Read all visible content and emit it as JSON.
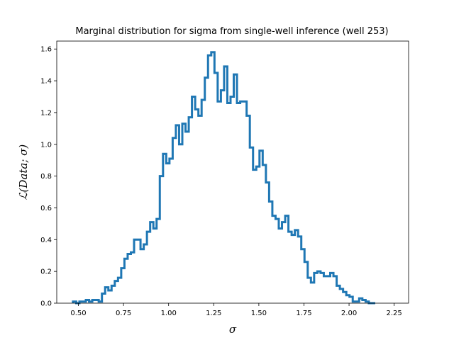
{
  "chart_data": {
    "type": "histogram-step",
    "title": "Marginal distribution for sigma from single-well inference (well 253)",
    "xlabel": "σ",
    "ylabel": "ℒ(Data; σ)",
    "xlim": [
      0.38,
      2.33
    ],
    "ylim": [
      0.0,
      1.65
    ],
    "xticks": [
      0.5,
      0.75,
      1.0,
      1.25,
      1.5,
      1.75,
      2.0,
      2.25
    ],
    "xtick_labels": [
      "0.50",
      "0.75",
      "1.00",
      "1.25",
      "1.50",
      "1.75",
      "2.00",
      "2.25"
    ],
    "yticks": [
      0.0,
      0.2,
      0.4,
      0.6,
      0.8,
      1.0,
      1.2,
      1.4,
      1.6
    ],
    "ytick_labels": [
      "0.0",
      "0.2",
      "0.4",
      "0.6",
      "0.8",
      "1.0",
      "1.2",
      "1.4",
      "1.6"
    ],
    "grid": false,
    "line_color": "#1f77b4",
    "bin_start": 0.47,
    "bin_width": 0.01782,
    "values": [
      0.01,
      0.0,
      0.01,
      0.01,
      0.02,
      0.01,
      0.02,
      0.02,
      0.01,
      0.06,
      0.1,
      0.08,
      0.11,
      0.14,
      0.16,
      0.22,
      0.28,
      0.31,
      0.32,
      0.4,
      0.4,
      0.34,
      0.37,
      0.45,
      0.51,
      0.47,
      0.53,
      0.8,
      0.94,
      0.88,
      0.91,
      1.04,
      1.12,
      1.0,
      1.13,
      1.08,
      1.17,
      1.3,
      1.22,
      1.18,
      1.28,
      1.42,
      1.56,
      1.58,
      1.45,
      1.27,
      1.34,
      1.49,
      1.26,
      1.3,
      1.44,
      1.26,
      1.27,
      1.27,
      1.18,
      0.98,
      0.84,
      0.86,
      0.96,
      0.87,
      0.76,
      0.64,
      0.55,
      0.53,
      0.47,
      0.51,
      0.55,
      0.45,
      0.43,
      0.46,
      0.42,
      0.34,
      0.26,
      0.16,
      0.13,
      0.19,
      0.2,
      0.19,
      0.17,
      0.17,
      0.19,
      0.17,
      0.11,
      0.09,
      0.07,
      0.05,
      0.04,
      0.01,
      0.01,
      0.03,
      0.02,
      0.01,
      0.0,
      0.0
    ]
  }
}
